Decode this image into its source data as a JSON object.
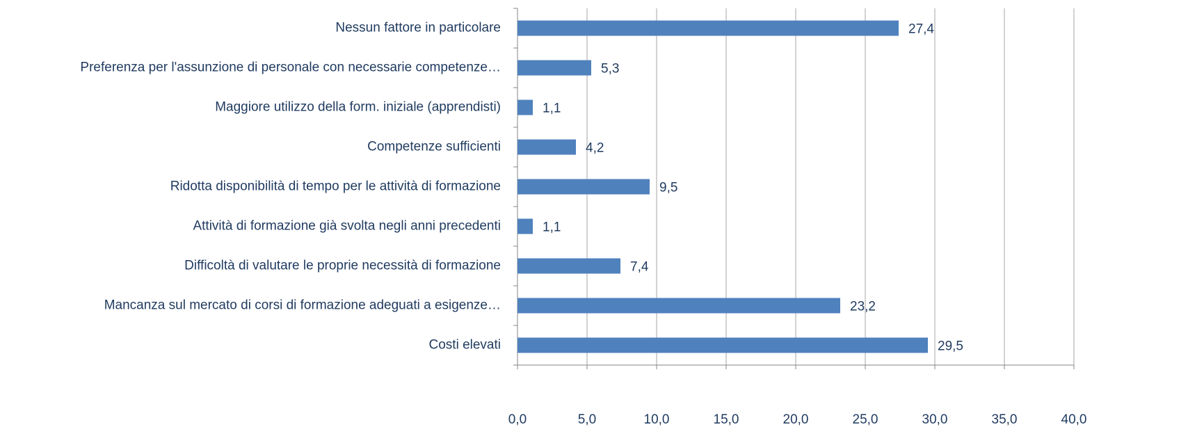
{
  "chart_data": {
    "type": "bar",
    "orientation": "horizontal",
    "categories": [
      "Nessun fattore in particolare",
      "Preferenza per l'assunzione di personale con necessarie competenze…",
      "Maggiore utilizzo della form. iniziale (apprendisti)",
      "Competenze sufficienti",
      "Ridotta disponibilità di tempo per le attività di formazione",
      "Attività di formazione già svolta negli anni precedenti",
      "Difficoltà di valutare le proprie necessità di formazione",
      "Mancanza sul mercato di corsi di formazione adeguati a esigenze…",
      "Costi elevati"
    ],
    "values": [
      27.4,
      5.3,
      1.1,
      4.2,
      9.5,
      1.1,
      7.4,
      23.2,
      29.5
    ],
    "value_labels": [
      "27,4",
      "5,3",
      "1,1",
      "4,2",
      "9,5",
      "1,1",
      "7,4",
      "23,2",
      "29,5"
    ],
    "color": "#4f81bd",
    "xlim": [
      0,
      40
    ],
    "xticks": [
      {
        "value": 0,
        "label": "0,0"
      },
      {
        "value": 5,
        "label": "5,0"
      },
      {
        "value": 10,
        "label": "10,0"
      },
      {
        "value": 15,
        "label": "15,0"
      },
      {
        "value": 20,
        "label": "20,0"
      },
      {
        "value": 25,
        "label": "25,0"
      },
      {
        "value": 30,
        "label": "30,0"
      },
      {
        "value": 35,
        "label": "35,0"
      },
      {
        "value": 40,
        "label": "40,0"
      }
    ],
    "grid": true
  }
}
